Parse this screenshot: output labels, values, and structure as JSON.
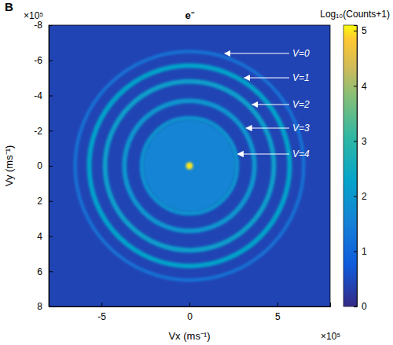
{
  "chart_data": {
    "type": "velocity_map",
    "panel_label": "B",
    "title": "e⁻",
    "x_label": "Vx (ms⁻¹)",
    "y_label": "Vy (ms⁻¹)",
    "x_multiplier": "×10⁵",
    "y_multiplier": "×10⁵",
    "xlim": [
      -8,
      8
    ],
    "ylim": [
      -8,
      8
    ],
    "xticks": [
      -5,
      0,
      5
    ],
    "yticks": [
      -8,
      -6,
      -4,
      -2,
      0,
      2,
      4,
      6,
      8
    ],
    "background_level": 0.4,
    "disc": {
      "radius": 2.6,
      "level": 1.6
    },
    "center_spot": {
      "radius": 0.2,
      "level": 5.0
    },
    "rings": [
      {
        "label": "V=0",
        "radius": 6.5,
        "level": 1.3
      },
      {
        "label": "V=1",
        "radius": 5.7,
        "level": 2.3
      },
      {
        "label": "V=2",
        "radius": 4.8,
        "level": 2.2
      },
      {
        "label": "V=3",
        "radius": 3.7,
        "level": 2.0
      },
      {
        "label": "V=4",
        "radius": 2.7,
        "level": 1.9
      }
    ],
    "colorbar": {
      "label": "Log₁₀(Counts+1)",
      "range": [
        0,
        5.1
      ],
      "ticks": [
        0,
        1,
        2,
        3,
        4,
        5
      ]
    }
  }
}
